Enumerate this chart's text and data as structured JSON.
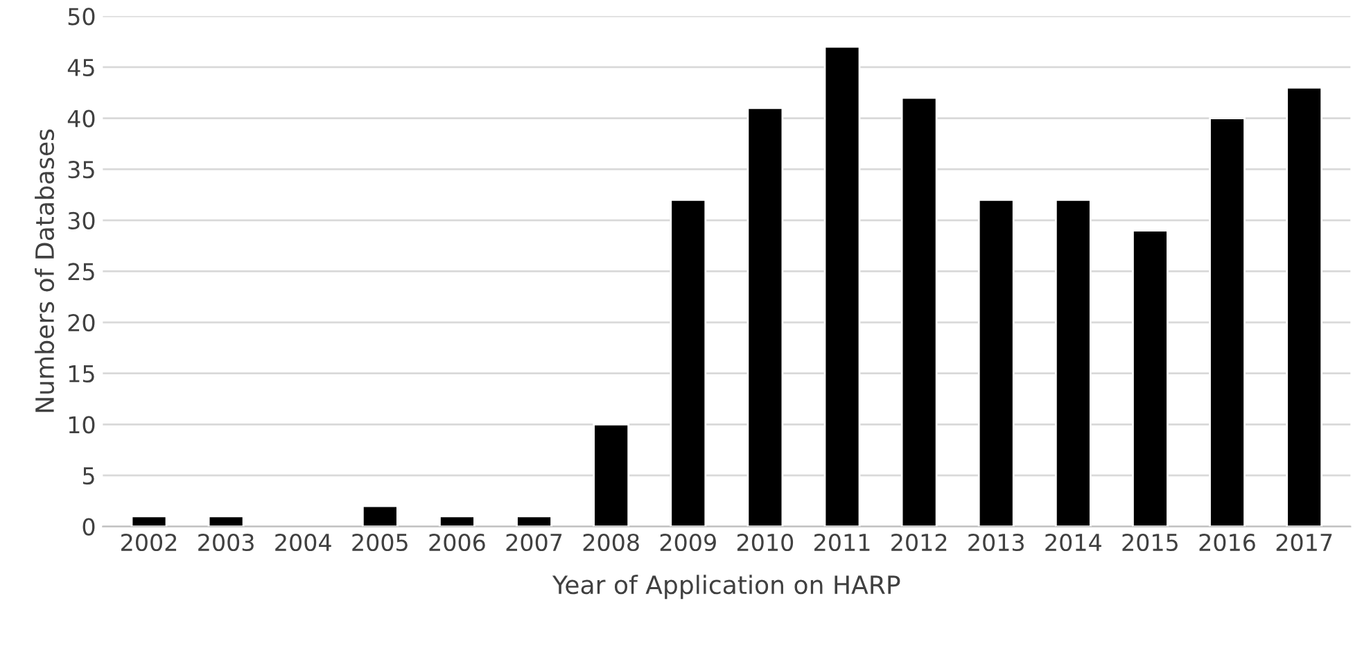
{
  "chart_data": {
    "type": "bar",
    "xlabel": "Year of Application on HARP",
    "ylabel": "Numbers of Databases",
    "categories": [
      "2002",
      "2003",
      "2004",
      "2005",
      "2006",
      "2007",
      "2008",
      "2009",
      "2010",
      "2011",
      "2012",
      "2013",
      "2014",
      "2015",
      "2016",
      "2017"
    ],
    "values": [
      1,
      1,
      0,
      2,
      1,
      1,
      10,
      32,
      41,
      47,
      42,
      32,
      32,
      29,
      40,
      43
    ],
    "color": "#000000",
    "ylim": [
      0,
      50
    ],
    "yticks": [
      0,
      5,
      10,
      15,
      20,
      25,
      30,
      35,
      40,
      45,
      50
    ],
    "grid": "y",
    "legend": false
  }
}
